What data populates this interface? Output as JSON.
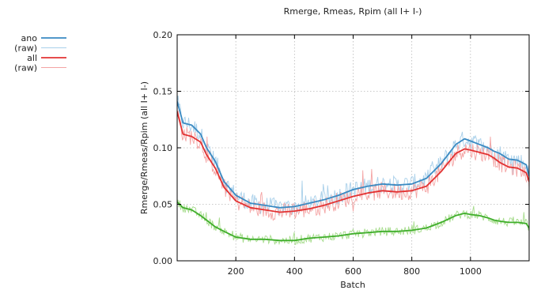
{
  "chart_data": {
    "type": "line",
    "title": "Rmerge, Rmeas, Rpim (all I+  I-)",
    "xlabel": "Batch",
    "ylabel": "Rmerge/Rmeas/Rpim (all I+  I-)",
    "xlim": [
      0,
      1200
    ],
    "ylim": [
      0.0,
      0.2
    ],
    "x_ticks": [
      200,
      400,
      600,
      800,
      1000
    ],
    "x_tick_labels": [
      "200",
      "400",
      "600",
      "800",
      "1000"
    ],
    "y_ticks": [
      0.0,
      0.05,
      0.1,
      0.15,
      0.2
    ],
    "y_tick_labels": [
      "0.00",
      "0.05",
      "0.10",
      "0.15",
      "0.20"
    ],
    "grid": true,
    "legend_position": "top-left, outside plot",
    "colors": {
      "ano": "#3a8ac2",
      "ano_raw": "#a9d0ea",
      "all": "#e23232",
      "all_raw": "#f4a4a4",
      "third": "#3fae2a",
      "third_raw": "#a6dc8c",
      "grid": "#b8b8b8"
    },
    "legend": [
      {
        "label": "ano",
        "key": "ano"
      },
      {
        "label": "(raw)",
        "key": "ano_raw"
      },
      {
        "label": "all",
        "key": "all"
      },
      {
        "label": "(raw)",
        "key": "all_raw"
      }
    ],
    "series": [
      {
        "name": "ano",
        "color_key": "ano",
        "raw_color_key": "ano_raw",
        "raw_noise": 0.008,
        "x": [
          0,
          20,
          50,
          80,
          100,
          130,
          160,
          200,
          250,
          300,
          350,
          400,
          450,
          500,
          550,
          600,
          650,
          700,
          750,
          800,
          850,
          900,
          950,
          980,
          1000,
          1030,
          1060,
          1080,
          1100,
          1130,
          1160,
          1190,
          1200
        ],
        "y": [
          0.141,
          0.122,
          0.12,
          0.112,
          0.1,
          0.088,
          0.07,
          0.058,
          0.051,
          0.049,
          0.047,
          0.048,
          0.051,
          0.054,
          0.058,
          0.063,
          0.066,
          0.068,
          0.067,
          0.068,
          0.073,
          0.086,
          0.103,
          0.108,
          0.106,
          0.103,
          0.1,
          0.097,
          0.095,
          0.09,
          0.089,
          0.085,
          0.075
        ]
      },
      {
        "name": "all",
        "color_key": "all",
        "raw_color_key": "all_raw",
        "raw_noise": 0.008,
        "x": [
          0,
          20,
          50,
          80,
          100,
          130,
          160,
          200,
          250,
          300,
          350,
          400,
          450,
          500,
          550,
          600,
          650,
          700,
          750,
          800,
          850,
          900,
          950,
          980,
          1000,
          1030,
          1060,
          1080,
          1100,
          1130,
          1160,
          1190,
          1200
        ],
        "y": [
          0.132,
          0.112,
          0.11,
          0.105,
          0.094,
          0.082,
          0.065,
          0.053,
          0.047,
          0.045,
          0.043,
          0.044,
          0.046,
          0.049,
          0.053,
          0.057,
          0.06,
          0.062,
          0.061,
          0.062,
          0.066,
          0.079,
          0.095,
          0.099,
          0.098,
          0.096,
          0.094,
          0.091,
          0.087,
          0.083,
          0.082,
          0.078,
          0.07
        ]
      },
      {
        "color_key": "third",
        "raw_color_key": "third_raw",
        "raw_noise": 0.004,
        "x": [
          0,
          20,
          50,
          80,
          100,
          130,
          160,
          200,
          250,
          300,
          350,
          400,
          450,
          500,
          550,
          600,
          650,
          700,
          750,
          800,
          850,
          900,
          950,
          980,
          1000,
          1030,
          1060,
          1080,
          1100,
          1130,
          1160,
          1190,
          1200
        ],
        "y": [
          0.052,
          0.047,
          0.045,
          0.04,
          0.036,
          0.03,
          0.026,
          0.021,
          0.019,
          0.019,
          0.018,
          0.018,
          0.02,
          0.021,
          0.022,
          0.024,
          0.025,
          0.026,
          0.026,
          0.027,
          0.029,
          0.034,
          0.04,
          0.042,
          0.041,
          0.04,
          0.038,
          0.036,
          0.035,
          0.034,
          0.034,
          0.033,
          0.029
        ]
      }
    ]
  }
}
